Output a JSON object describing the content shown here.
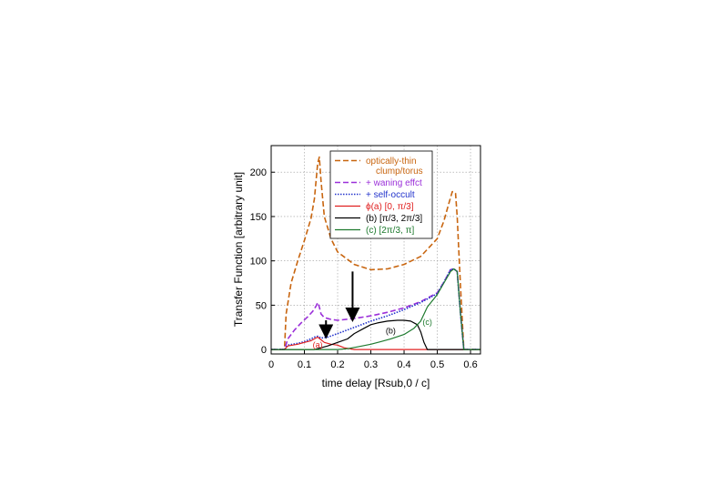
{
  "chart_data": {
    "type": "line",
    "xlabel": "time delay [Rsub,0 / c]",
    "ylabel": "Transfer Function [arbitrary unit]",
    "xlim": [
      0,
      0.63
    ],
    "ylim": [
      -5,
      230
    ],
    "xticks": [
      "0",
      "0.1",
      "0.2",
      "0.3",
      "0.4",
      "0.5",
      "0.6"
    ],
    "yticks": [
      "0",
      "50",
      "100",
      "150",
      "200"
    ],
    "grid": true,
    "legend_position": "top-right",
    "legend": [
      {
        "text": "optically-thin",
        "color": "#c8650f"
      },
      {
        "text": "clump/torus",
        "color": "#c8650f"
      },
      {
        "text": "+ waning effct",
        "color": "#9b30d9"
      },
      {
        "text": "+ self-occult",
        "color": "#2233cc"
      },
      {
        "text": "ϕ(a) [0, π/3]",
        "color": "#e02020"
      },
      {
        "text": "(b) [π/3, 2π/3]",
        "color": "#000000"
      },
      {
        "text": "(c) [2π/3, π]",
        "color": "#1e7a2e"
      }
    ],
    "annotations": [
      {
        "text": "(a)",
        "x": 0.14,
        "y": 2,
        "color": "#e02020"
      },
      {
        "text": "(b)",
        "x": 0.36,
        "y": 18,
        "color": "#000000"
      },
      {
        "text": "(c)",
        "x": 0.47,
        "y": 28,
        "color": "#1e7a2e"
      }
    ],
    "arrows": [
      {
        "x": 0.245,
        "y_from": 88,
        "y_to": 35
      },
      {
        "x": 0.165,
        "y_from": 33,
        "y_to": 16
      }
    ],
    "series": [
      {
        "name": "optically-thin clump/torus",
        "color": "#c8650f",
        "dash": "dashed",
        "x": [
          0,
          0.04,
          0.045,
          0.06,
          0.08,
          0.1,
          0.12,
          0.13,
          0.14,
          0.145,
          0.15,
          0.16,
          0.18,
          0.2,
          0.25,
          0.3,
          0.35,
          0.4,
          0.45,
          0.5,
          0.52,
          0.535,
          0.545,
          0.55,
          0.555,
          0.56,
          0.57,
          0.58,
          0.6,
          0.63
        ],
        "y": [
          0,
          0,
          40,
          75,
          100,
          123,
          148,
          170,
          210,
          217,
          190,
          150,
          125,
          110,
          96,
          90,
          91,
          96,
          105,
          125,
          145,
          165,
          178,
          178,
          176,
          150,
          70,
          0,
          0,
          0
        ]
      },
      {
        "name": "+ waning effct",
        "color": "#9b30d9",
        "dash": "dashed",
        "x": [
          0,
          0.04,
          0.05,
          0.07,
          0.09,
          0.11,
          0.125,
          0.135,
          0.14,
          0.145,
          0.15,
          0.16,
          0.18,
          0.2,
          0.25,
          0.3,
          0.35,
          0.4,
          0.45,
          0.5,
          0.52,
          0.54,
          0.55,
          0.56,
          0.57,
          0.58,
          0.6,
          0.63
        ],
        "y": [
          0,
          0,
          12,
          22,
          30,
          37,
          43,
          49,
          53,
          48,
          40,
          36,
          34,
          33,
          35,
          38,
          42,
          47,
          54,
          64,
          76,
          90,
          91,
          88,
          40,
          0,
          0,
          0
        ]
      },
      {
        "name": "+ self-occult",
        "color": "#2233cc",
        "dash": "dotted",
        "x": [
          0,
          0.04,
          0.05,
          0.08,
          0.1,
          0.12,
          0.13,
          0.14,
          0.15,
          0.17,
          0.2,
          0.25,
          0.3,
          0.35,
          0.4,
          0.45,
          0.5,
          0.52,
          0.54,
          0.55,
          0.56,
          0.57,
          0.58,
          0.6,
          0.63
        ],
        "y": [
          0,
          0,
          5,
          7,
          9,
          12,
          14,
          15,
          13,
          14,
          18,
          25,
          32,
          38,
          45,
          53,
          63,
          76,
          90,
          91,
          88,
          40,
          0,
          0,
          0
        ]
      },
      {
        "name": "ϕ(a) [0, π/3]",
        "color": "#e02020",
        "dash": "solid",
        "x": [
          0,
          0.04,
          0.05,
          0.08,
          0.1,
          0.12,
          0.13,
          0.14,
          0.15,
          0.16,
          0.18,
          0.2,
          0.22,
          0.25,
          0.3,
          0.4,
          0.5,
          0.63
        ],
        "y": [
          0,
          0,
          4,
          6,
          8,
          10,
          12,
          14,
          11,
          8,
          6,
          5,
          2,
          0,
          0,
          0,
          0,
          0
        ]
      },
      {
        "name": "(b) [π/3, 2π/3]",
        "color": "#000000",
        "dash": "solid",
        "x": [
          0,
          0.1,
          0.13,
          0.15,
          0.17,
          0.2,
          0.23,
          0.25,
          0.28,
          0.3,
          0.32,
          0.35,
          0.38,
          0.4,
          0.42,
          0.44,
          0.45,
          0.46,
          0.47,
          0.5,
          0.63
        ],
        "y": [
          0,
          0,
          0,
          2,
          4,
          8,
          12,
          18,
          24,
          28,
          30,
          32,
          33,
          33,
          32,
          28,
          20,
          8,
          0,
          0,
          0
        ]
      },
      {
        "name": "(c) [2π/3, π]",
        "color": "#1e7a2e",
        "dash": "solid",
        "x": [
          0,
          0.2,
          0.23,
          0.26,
          0.3,
          0.33,
          0.36,
          0.4,
          0.43,
          0.45,
          0.47,
          0.5,
          0.52,
          0.54,
          0.55,
          0.56,
          0.57,
          0.58,
          0.6,
          0.63
        ],
        "y": [
          0,
          0,
          1,
          3,
          6,
          9,
          12,
          17,
          24,
          32,
          48,
          62,
          75,
          88,
          91,
          88,
          40,
          0,
          0,
          0
        ]
      }
    ]
  }
}
